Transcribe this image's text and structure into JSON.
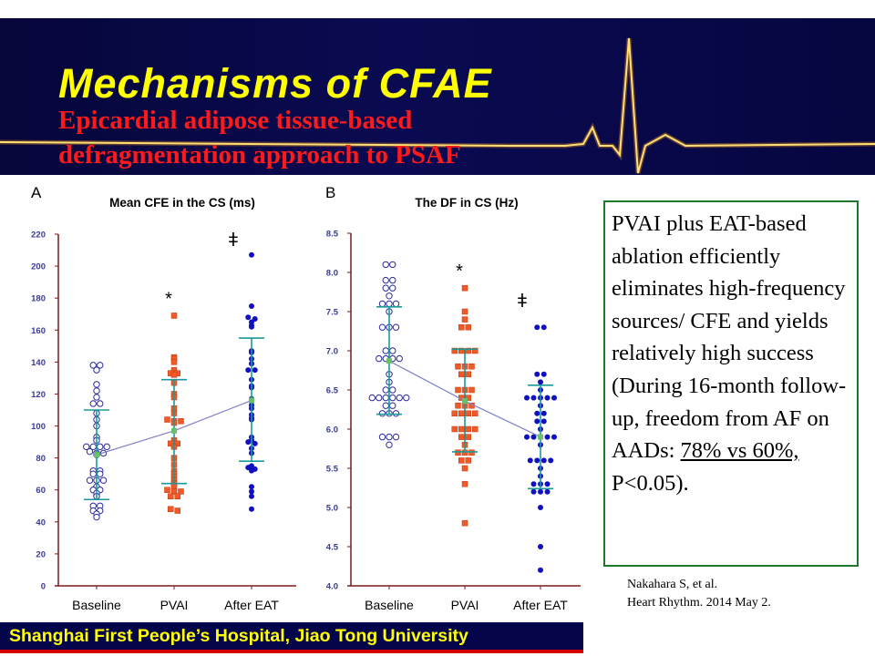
{
  "slide": {
    "title": "Mechanisms of CFAE",
    "subtitle_line1": "Epicardial adipose tissue-based",
    "subtitle_line2": "defragmentation approach to PSAF",
    "note_part1": "PVAI plus EAT-based ablation efficiently eliminates high-frequency sources/ CFE and yields relatively high success (During 16-month follow-up, freedom from AF on AADs: ",
    "note_underlined": "78% vs 60%,",
    "note_part2": " P<0.05).",
    "citation_line1": "Nakahara S, et al.",
    "citation_line2": "Heart Rhythm. 2014 May 2.",
    "footer": "Shanghai First People’s Hospital, Jiao Tong University",
    "colors": {
      "header_bg": "#0a0a52",
      "title": "#ffff00",
      "subtitle": "#ff1a1a",
      "note_border": "#1e7a2a",
      "footer_text": "#ffff00",
      "footer_line": "#d40000"
    }
  },
  "chart_data": [
    {
      "type": "scatter",
      "panel": "A",
      "title": "Mean CFE in the CS (ms)",
      "categories": [
        "Baseline",
        "PVAI",
        "After EAT"
      ],
      "ylim": [
        0,
        220
      ],
      "yticks": [
        "0",
        "20",
        "40",
        "60",
        "80",
        "100",
        "120",
        "140",
        "160",
        "180",
        "200",
        "220"
      ],
      "significance": [
        "",
        "*",
        "ǂ"
      ],
      "series": [
        {
          "name": "Baseline",
          "marker": "open-circle",
          "color": "#2b2b9e",
          "values": [
            138,
            138,
            135,
            126,
            122,
            118,
            114,
            114,
            108,
            104,
            100,
            93,
            91,
            87,
            87,
            87,
            87,
            84,
            83,
            83,
            82,
            72,
            72,
            70,
            70,
            66,
            66,
            66,
            62,
            60,
            60,
            58,
            56,
            50,
            50,
            47,
            47,
            45,
            43
          ]
        },
        {
          "name": "PVAI",
          "marker": "square",
          "color": "#f05a28",
          "values": [
            169,
            143,
            142,
            140,
            135,
            133,
            133,
            132,
            127,
            120,
            118,
            111,
            108,
            104,
            103,
            103,
            102,
            91,
            89,
            89,
            87,
            80,
            76,
            72,
            70,
            68,
            66,
            64,
            62,
            60,
            59,
            59,
            56,
            56,
            48,
            47
          ]
        },
        {
          "name": "After EAT",
          "marker": "filled-circle",
          "color": "#1010c0",
          "values": [
            207,
            175,
            168,
            167,
            165,
            163,
            162,
            147,
            146,
            142,
            139,
            135,
            135,
            129,
            125,
            124,
            117,
            113,
            111,
            107,
            105,
            104,
            93,
            91,
            90,
            89,
            86,
            83,
            75,
            74,
            73,
            72,
            62,
            59,
            56,
            48
          ]
        }
      ],
      "means": [
        82,
        97,
        116
      ],
      "sd_range": [
        [
          54,
          110
        ],
        [
          64,
          129
        ],
        [
          78,
          155
        ]
      ]
    },
    {
      "type": "scatter",
      "panel": "B",
      "title": "The DF in CS (Hz)",
      "categories": [
        "Baseline",
        "PVAI",
        "After EAT"
      ],
      "ylim": [
        4.0,
        8.5
      ],
      "yticks": [
        "4.0",
        "4.5",
        "5.0",
        "5.5",
        "6.0",
        "6.5",
        "7.0",
        "7.5",
        "8.0",
        "8.5"
      ],
      "significance": [
        "",
        "*",
        "ǂ"
      ],
      "series": [
        {
          "name": "Baseline",
          "marker": "open-circle",
          "color": "#2b2b9e",
          "values": [
            8.1,
            8.1,
            7.9,
            7.9,
            7.8,
            7.8,
            7.7,
            7.6,
            7.6,
            7.6,
            7.5,
            7.3,
            7.3,
            7.3,
            7.0,
            7.0,
            6.9,
            6.9,
            6.9,
            6.9,
            6.7,
            6.6,
            6.5,
            6.5,
            6.4,
            6.4,
            6.4,
            6.4,
            6.4,
            6.4,
            6.3,
            6.3,
            6.2,
            6.2,
            6.2,
            5.9,
            5.9,
            5.9,
            5.8
          ]
        },
        {
          "name": "PVAI",
          "marker": "square",
          "color": "#f05a28",
          "values": [
            7.8,
            7.5,
            7.4,
            7.3,
            7.3,
            7.0,
            7.0,
            7.0,
            7.0,
            6.8,
            6.8,
            6.8,
            6.7,
            6.7,
            6.5,
            6.5,
            6.5,
            6.4,
            6.4,
            6.3,
            6.3,
            6.3,
            6.2,
            6.2,
            6.2,
            6.2,
            6.0,
            6.0,
            6.0,
            6.0,
            5.9,
            5.9,
            5.8,
            5.7,
            5.7,
            5.7,
            5.6,
            5.6,
            5.5,
            5.3,
            4.8
          ]
        },
        {
          "name": "After EAT",
          "marker": "filled-circle",
          "color": "#1010c0",
          "values": [
            7.3,
            7.3,
            6.7,
            6.7,
            6.6,
            6.5,
            6.4,
            6.4,
            6.4,
            6.4,
            6.4,
            6.3,
            6.2,
            6.2,
            6.1,
            6.1,
            6.0,
            5.9,
            5.9,
            5.9,
            5.9,
            5.9,
            5.8,
            5.6,
            5.6,
            5.6,
            5.6,
            5.5,
            5.4,
            5.3,
            5.3,
            5.3,
            5.2,
            5.2,
            5.2,
            5.0,
            4.5,
            4.2
          ]
        }
      ],
      "means": [
        6.87,
        6.36,
        5.9
      ],
      "sd_range": [
        [
          6.19,
          7.56
        ],
        [
          5.71,
          7.02
        ],
        [
          5.24,
          6.56
        ]
      ]
    }
  ]
}
